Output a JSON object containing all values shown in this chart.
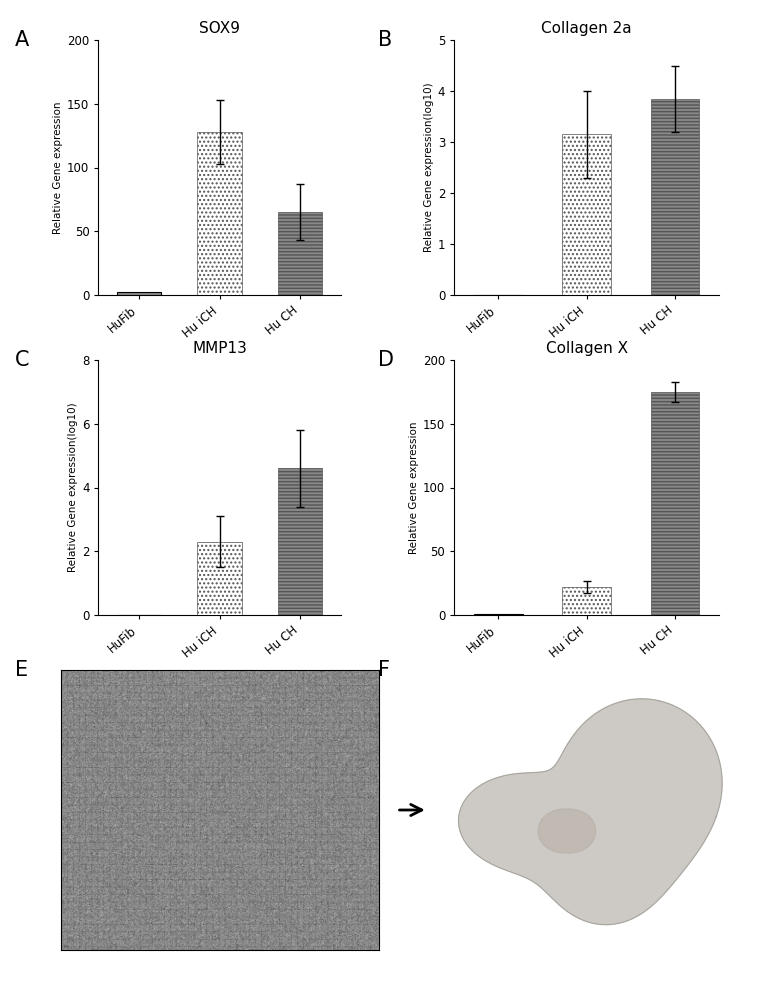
{
  "panel_A": {
    "title": "SOX9",
    "ylabel": "Relative Gene expression",
    "categories": [
      "HuFib",
      "Hu iCH",
      "Hu CH"
    ],
    "values": [
      2,
      128,
      65
    ],
    "errors": [
      0,
      25,
      22
    ],
    "ylim": [
      0,
      200
    ],
    "yticks": [
      0,
      50,
      100,
      150,
      200
    ]
  },
  "panel_B": {
    "title": "Collagen 2a",
    "ylabel": "Relative Gene expression(log10)",
    "categories": [
      "HuFib",
      "Hu iCH",
      "Hu CH"
    ],
    "values": [
      0,
      3.15,
      3.85
    ],
    "errors": [
      0,
      0.85,
      0.65
    ],
    "ylim": [
      0,
      5
    ],
    "yticks": [
      0,
      1,
      2,
      3,
      4,
      5
    ]
  },
  "panel_C": {
    "title": "MMP13",
    "ylabel": "Relative Gene expression(log10)",
    "categories": [
      "HuFib",
      "Hu iCH",
      "Hu CH"
    ],
    "values": [
      0,
      2.3,
      4.6
    ],
    "errors": [
      0,
      0.8,
      1.2
    ],
    "ylim": [
      0,
      8
    ],
    "yticks": [
      0,
      2,
      4,
      6,
      8
    ]
  },
  "panel_D": {
    "title": "Collagen X",
    "ylabel": "Relative Gene expression",
    "categories": [
      "HuFib",
      "Hu iCH",
      "Hu CH"
    ],
    "values": [
      1,
      22,
      175
    ],
    "errors": [
      0,
      5,
      8
    ],
    "ylim": [
      0,
      200
    ],
    "yticks": [
      0,
      50,
      100,
      150,
      200
    ]
  },
  "label_fontsize": 9,
  "title_fontsize": 11,
  "panel_label_fontsize": 15,
  "bar_width": 0.55,
  "gray_texture_mean": 0.62,
  "gray_texture_std": 0.04,
  "tissue_color": "#c8c4be",
  "tissue_edge_color": "#a0a098",
  "tissue_inner_color": "#b8b0a8"
}
